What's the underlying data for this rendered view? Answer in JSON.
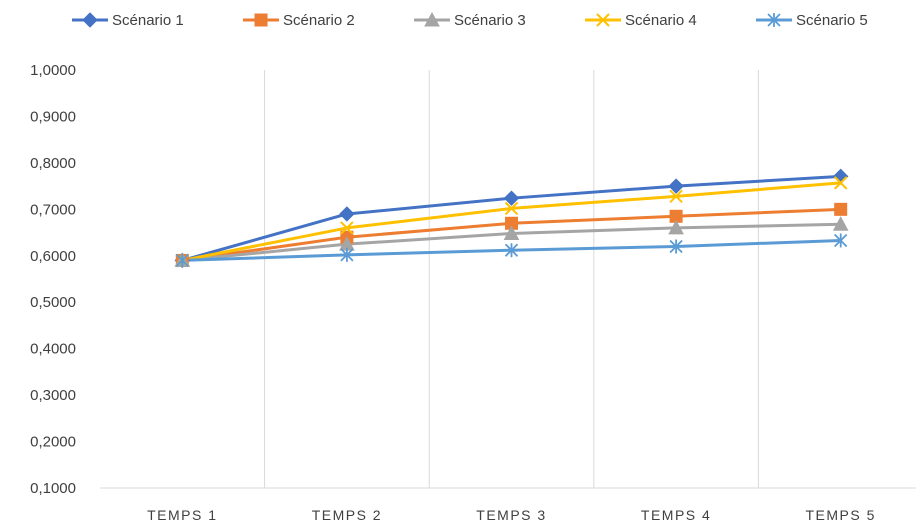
{
  "chart_data": {
    "type": "line",
    "title": "",
    "xlabel": "",
    "ylabel": "",
    "categories": [
      "TEMPS 1",
      "TEMPS 2",
      "TEMPS 3",
      "TEMPS 4",
      "TEMPS 5"
    ],
    "ylim": [
      0.1,
      1.0
    ],
    "yticks": [
      "1,0000",
      "0,9000",
      "0,8000",
      "0,7000",
      "0,6000",
      "0,5000",
      "0,4000",
      "0,3000",
      "0,2000",
      "0,1000"
    ],
    "ytick_values": [
      1.0,
      0.9,
      0.8,
      0.7,
      0.6,
      0.5,
      0.4,
      0.3,
      0.2,
      0.1
    ],
    "grid": "vertical",
    "legend_position": "top",
    "series": [
      {
        "name": "Scénario 1",
        "values": [
          0.59,
          0.69,
          0.724,
          0.75,
          0.771
        ],
        "color": "#4472C4",
        "marker": "diamond"
      },
      {
        "name": "Scénario 2",
        "values": [
          0.59,
          0.64,
          0.67,
          0.685,
          0.7
        ],
        "color": "#ED7D31",
        "marker": "square"
      },
      {
        "name": "Scénario 3",
        "values": [
          0.59,
          0.625,
          0.648,
          0.66,
          0.668
        ],
        "color": "#A5A5A5",
        "marker": "triangle"
      },
      {
        "name": "Scénario 4",
        "values": [
          0.59,
          0.66,
          0.702,
          0.728,
          0.757
        ],
        "color": "#FFC000",
        "marker": "x"
      },
      {
        "name": "Scénario 5",
        "values": [
          0.59,
          0.602,
          0.612,
          0.62,
          0.633
        ],
        "color": "#5B9BD5",
        "marker": "star"
      }
    ]
  }
}
